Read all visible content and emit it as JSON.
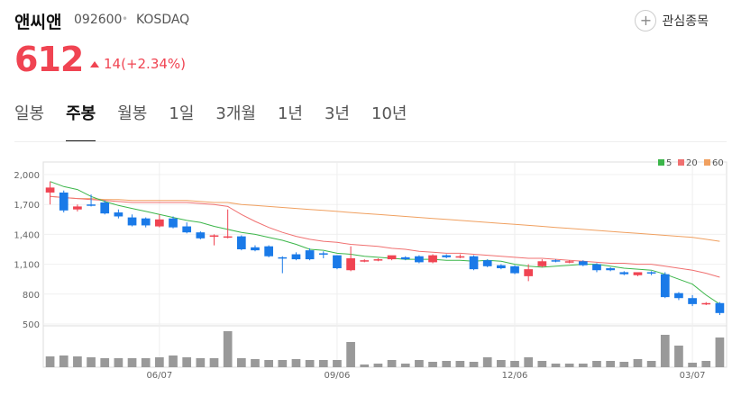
{
  "header": {
    "name": "앤씨앤",
    "code": "092600",
    "separator": "•",
    "market": "KOSDAQ",
    "favorite_label": "관심종목"
  },
  "quote": {
    "price": "612",
    "change": "14(+2.34%)"
  },
  "tabs": [
    "일봉",
    "주봉",
    "월봉",
    "1일",
    "3개월",
    "1년",
    "3년",
    "10년"
  ],
  "active_tab": "주봉",
  "colors": {
    "up": "#f04452",
    "down": "#1a7ae8",
    "ma5": "#3cb64a",
    "ma20": "#f07070",
    "ma60": "#f0a060",
    "volume": "#999999"
  },
  "chart_data": {
    "type": "candlestick",
    "ylim": [
      500,
      2000
    ],
    "yticks": [
      "2,000",
      "1,700",
      "1,400",
      "1,100",
      "800",
      "500"
    ],
    "xticks": [
      "06/07",
      "09/06",
      "12/06",
      "03/07"
    ],
    "xtick_candle_index": [
      8,
      21,
      34,
      47
    ],
    "legend": [
      {
        "label": "5",
        "color": "#3cb64a"
      },
      {
        "label": "20",
        "color": "#f07070"
      },
      {
        "label": "60",
        "color": "#f0a060"
      }
    ],
    "candles": [
      [
        1820,
        1930,
        1870,
        1700
      ],
      [
        1820,
        1840,
        1640,
        1620
      ],
      [
        1650,
        1700,
        1680,
        1630
      ],
      [
        1700,
        1800,
        1690,
        1680
      ],
      [
        1720,
        1740,
        1610,
        1600
      ],
      [
        1620,
        1650,
        1580,
        1560
      ],
      [
        1570,
        1600,
        1490,
        1480
      ],
      [
        1560,
        1570,
        1490,
        1470
      ],
      [
        1480,
        1600,
        1550,
        1470
      ],
      [
        1560,
        1580,
        1470,
        1460
      ],
      [
        1480,
        1520,
        1420,
        1410
      ],
      [
        1420,
        1430,
        1360,
        1350
      ],
      [
        1380,
        1400,
        1390,
        1290
      ],
      [
        1370,
        1650,
        1380,
        1360
      ],
      [
        1380,
        1390,
        1250,
        1240
      ],
      [
        1270,
        1290,
        1240,
        1230
      ],
      [
        1280,
        1290,
        1180,
        1170
      ],
      [
        1170,
        1180,
        1160,
        1010
      ],
      [
        1200,
        1220,
        1150,
        1140
      ],
      [
        1240,
        1260,
        1150,
        1140
      ],
      [
        1210,
        1230,
        1200,
        1160
      ],
      [
        1190,
        1190,
        1060,
        1050
      ],
      [
        1040,
        1280,
        1160,
        1030
      ],
      [
        1130,
        1150,
        1140,
        1120
      ],
      [
        1140,
        1160,
        1150,
        1130
      ],
      [
        1150,
        1180,
        1190,
        1140
      ],
      [
        1170,
        1180,
        1150,
        1140
      ],
      [
        1180,
        1190,
        1120,
        1110
      ],
      [
        1120,
        1200,
        1190,
        1110
      ],
      [
        1190,
        1200,
        1170,
        1160
      ],
      [
        1170,
        1200,
        1180,
        1160
      ],
      [
        1180,
        1190,
        1050,
        1040
      ],
      [
        1140,
        1150,
        1080,
        1070
      ],
      [
        1090,
        1100,
        1060,
        1050
      ],
      [
        1080,
        1090,
        1010,
        1000
      ],
      [
        980,
        1100,
        1050,
        930
      ],
      [
        1080,
        1150,
        1130,
        1070
      ],
      [
        1140,
        1150,
        1130,
        1120
      ],
      [
        1120,
        1140,
        1130,
        1110
      ],
      [
        1130,
        1140,
        1090,
        1080
      ],
      [
        1100,
        1110,
        1040,
        1020
      ],
      [
        1060,
        1070,
        1040,
        1030
      ],
      [
        1020,
        1030,
        1000,
        990
      ],
      [
        990,
        1010,
        1020,
        980
      ],
      [
        1020,
        1030,
        1010,
        990
      ],
      [
        1000,
        1020,
        770,
        760
      ],
      [
        810,
        820,
        760,
        740
      ],
      [
        760,
        790,
        700,
        680
      ],
      [
        700,
        720,
        710,
        690
      ],
      [
        710,
        720,
        610,
        590
      ]
    ],
    "volume": [
      12,
      13,
      12,
      11,
      10,
      10,
      10,
      10,
      11,
      13,
      11,
      10,
      10,
      40,
      10,
      9,
      8,
      8,
      9,
      8,
      8,
      8,
      28,
      3,
      4,
      8,
      4,
      8,
      6,
      7,
      7,
      6,
      11,
      8,
      7,
      11,
      7,
      4,
      4,
      4,
      7,
      7,
      6,
      9,
      7,
      36,
      24,
      5,
      7,
      33
    ],
    "ma5": [
      1930,
      1880,
      1850,
      1780,
      1730,
      1690,
      1660,
      1630,
      1600,
      1570,
      1540,
      1520,
      1480,
      1450,
      1420,
      1400,
      1370,
      1340,
      1300,
      1250,
      1240,
      1210,
      1200,
      1180,
      1170,
      1160,
      1150,
      1150,
      1150,
      1140,
      1140,
      1130,
      1140,
      1130,
      1100,
      1080,
      1070,
      1080,
      1090,
      1100,
      1100,
      1080,
      1060,
      1050,
      1040,
      1000,
      950,
      900,
      790,
      700
    ],
    "ma20": [
      1780,
      1770,
      1760,
      1750,
      1740,
      1730,
      1720,
      1720,
      1720,
      1720,
      1720,
      1710,
      1700,
      1680,
      1600,
      1530,
      1470,
      1420,
      1380,
      1350,
      1330,
      1320,
      1300,
      1290,
      1280,
      1260,
      1250,
      1230,
      1220,
      1210,
      1210,
      1200,
      1190,
      1180,
      1170,
      1160,
      1160,
      1150,
      1140,
      1130,
      1120,
      1110,
      1110,
      1100,
      1100,
      1080,
      1060,
      1040,
      1010,
      970
    ],
    "ma60": [
      1780,
      1770,
      1760,
      1760,
      1750,
      1750,
      1740,
      1740,
      1740,
      1740,
      1740,
      1730,
      1720,
      1720,
      1700,
      1690,
      1680,
      1670,
      1660,
      1650,
      1640,
      1630,
      1620,
      1610,
      1600,
      1590,
      1580,
      1570,
      1560,
      1550,
      1540,
      1530,
      1520,
      1510,
      1500,
      1490,
      1480,
      1470,
      1460,
      1450,
      1440,
      1430,
      1420,
      1410,
      1400,
      1390,
      1380,
      1370,
      1350,
      1330
    ]
  }
}
